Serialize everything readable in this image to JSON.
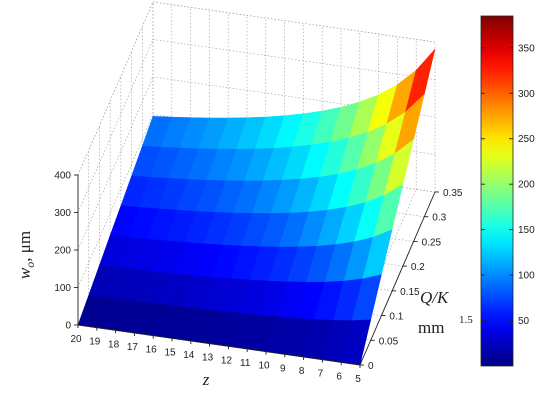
{
  "chart_data": {
    "type": "surface",
    "x": {
      "label": "z",
      "ticks": [
        20,
        19,
        18,
        17,
        16,
        15,
        14,
        13,
        12,
        11,
        10,
        9,
        8,
        7,
        6,
        5
      ],
      "range": [
        5,
        20
      ]
    },
    "y": {
      "label_main": "Q/K",
      "label_unit": "mm",
      "label_sup": "1.5",
      "ticks": [
        0,
        0.05,
        0.1,
        0.15,
        0.2,
        0.25,
        0.3,
        0.35
      ],
      "range": [
        0,
        0.35
      ]
    },
    "zaxis": {
      "label_main": "w",
      "label_sub": "o",
      "label_unit": ",  μm",
      "ticks": [
        0,
        100,
        200,
        300,
        400
      ],
      "range": [
        0,
        400
      ]
    },
    "surface": {
      "formula": "w_o = 5444 * (Q/K) / z",
      "z_values": [
        20,
        19,
        18,
        17,
        16,
        15,
        14,
        13,
        12,
        11,
        10,
        9,
        8,
        7,
        6,
        5
      ],
      "qk_values": [
        0,
        0.05,
        0.1,
        0.15,
        0.2,
        0.25,
        0.3,
        0.35
      ],
      "corner_values": {
        "z20_qk0": 0,
        "z5_qk0": 0,
        "z20_qk035": 95,
        "z5_qk035": 381
      }
    },
    "colorbar": {
      "colormap": "jet",
      "range": [
        0,
        385
      ],
      "ticks": [
        50,
        100,
        150,
        200,
        250,
        300,
        350
      ]
    },
    "grid": true
  }
}
